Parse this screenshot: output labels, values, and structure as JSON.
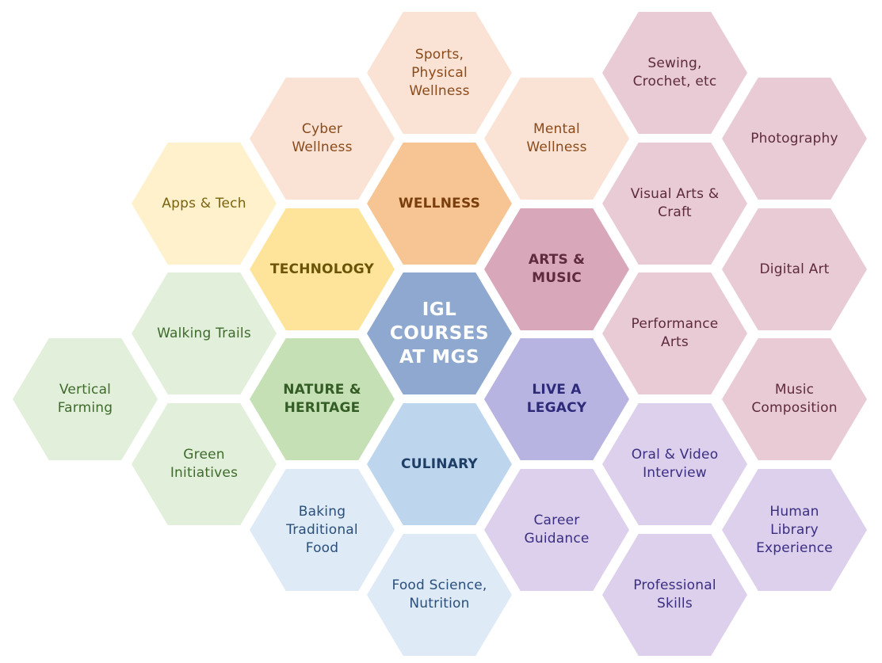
{
  "center": {
    "label": "IGL\nCOURSES\nAT MGS",
    "fill": "#8FA8D0",
    "text_color": "#FFFFFF"
  },
  "hubs": [
    {
      "id": "wellness",
      "label": "WELLNESS",
      "fill": "#F7C493",
      "text_color": "#7A3E0C"
    },
    {
      "id": "technology",
      "label": "TECHNOLOGY",
      "fill": "#FDE49A",
      "text_color": "#6B5308"
    },
    {
      "id": "arts-music",
      "label": "ARTS & MUSIC",
      "fill": "#D8A7B9",
      "text_color": "#5E2A3D"
    },
    {
      "id": "nature-heritage",
      "label": "NATURE &\nHERITAGE",
      "fill": "#C6E0B6",
      "text_color": "#345C25"
    },
    {
      "id": "live-a-legacy",
      "label": "LIVE A\nLEGACY",
      "fill": "#B7B4E2",
      "text_color": "#2E2A7A"
    },
    {
      "id": "culinary",
      "label": "CULINARY",
      "fill": "#BDD6EE",
      "text_color": "#1F3E66"
    }
  ],
  "topics": [
    {
      "id": "sports",
      "group": "wellness",
      "label": "Sports,\nPhysical\nWellness"
    },
    {
      "id": "cyber-wellness",
      "group": "wellness",
      "label": "Cyber\nWellness"
    },
    {
      "id": "mental-wellness",
      "group": "wellness",
      "label": "Mental\nWellness"
    },
    {
      "id": "apps-tech",
      "group": "technology",
      "label": "Apps & Tech"
    },
    {
      "id": "sewing",
      "group": "arts-music",
      "label": "Sewing,\nCrochet, etc"
    },
    {
      "id": "photography",
      "group": "arts-music",
      "label": "Photography"
    },
    {
      "id": "visual-arts",
      "group": "arts-music",
      "label": "Visual Arts &\nCraft"
    },
    {
      "id": "digital-art",
      "group": "arts-music",
      "label": "Digital Art"
    },
    {
      "id": "performance-arts",
      "group": "arts-music",
      "label": "Performance\nArts"
    },
    {
      "id": "music-composition",
      "group": "arts-music",
      "label": "Music\nComposition"
    },
    {
      "id": "walking-trails",
      "group": "nature-heritage",
      "label": "Walking Trails"
    },
    {
      "id": "vertical-farming",
      "group": "nature-heritage",
      "label": "Vertical\nFarming"
    },
    {
      "id": "green-initiatives",
      "group": "nature-heritage",
      "label": "Green\nInitiatives"
    },
    {
      "id": "oral-video",
      "group": "live-a-legacy",
      "label": "Oral & Video\nInterview"
    },
    {
      "id": "human-library",
      "group": "live-a-legacy",
      "label": "Human\nLibrary\nExperience"
    },
    {
      "id": "career-guidance",
      "group": "live-a-legacy",
      "label": "Career\nGuidance"
    },
    {
      "id": "professional-skills",
      "group": "live-a-legacy",
      "label": "Professional\nSkills"
    },
    {
      "id": "baking",
      "group": "culinary",
      "label": "Baking\nTraditional\nFood"
    },
    {
      "id": "food-science",
      "group": "culinary",
      "label": "Food Science,\nNutrition"
    }
  ],
  "topic_colors": {
    "wellness": {
      "fill": "#FAE3D5",
      "text_color": "#8A4A1A"
    },
    "technology": {
      "fill": "#FEF1CC",
      "text_color": "#7A6310"
    },
    "arts-music": {
      "fill": "#E8CBD5",
      "text_color": "#5E2A3D"
    },
    "nature-heritage": {
      "fill": "#E2EFDA",
      "text_color": "#3E6B2C"
    },
    "live-a-legacy": {
      "fill": "#DCD0EC",
      "text_color": "#3A2E82"
    },
    "culinary": {
      "fill": "#DEEAF6",
      "text_color": "#2A4F7A"
    }
  }
}
